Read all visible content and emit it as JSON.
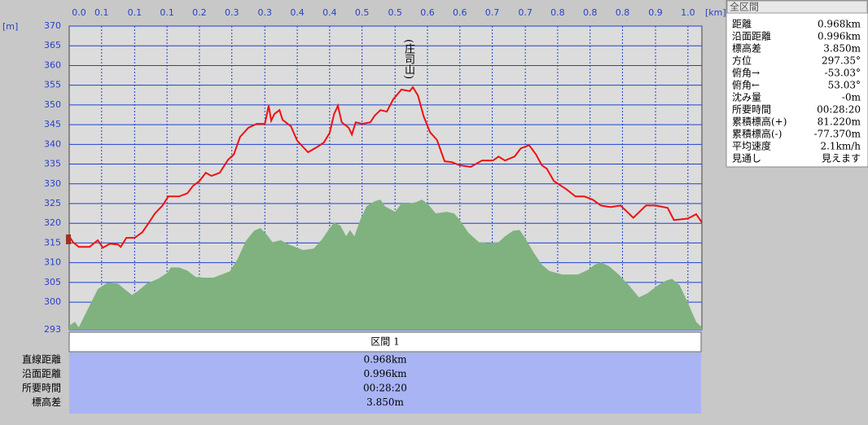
{
  "chart_data": {
    "type": "profile",
    "annotation": "(庄司山)",
    "y_unit": "[m]",
    "x_unit": "[km]",
    "xlim": [
      0,
      0.996
    ],
    "ylim": [
      293,
      370
    ],
    "xticks": [
      {
        "value": 0,
        "label": "0.0"
      },
      {
        "value": 0.051,
        "label": "0.1"
      },
      {
        "value": 0.103,
        "label": "0.1"
      },
      {
        "value": 0.154,
        "label": "0.1"
      },
      {
        "value": 0.205,
        "label": "0.2"
      },
      {
        "value": 0.256,
        "label": "0.3"
      },
      {
        "value": 0.308,
        "label": "0.3"
      },
      {
        "value": 0.359,
        "label": "0.4"
      },
      {
        "value": 0.41,
        "label": "0.4"
      },
      {
        "value": 0.461,
        "label": "0.5"
      },
      {
        "value": 0.513,
        "label": "0.5"
      },
      {
        "value": 0.564,
        "label": "0.6"
      },
      {
        "value": 0.615,
        "label": "0.6"
      },
      {
        "value": 0.666,
        "label": "0.7"
      },
      {
        "value": 0.718,
        "label": "0.7"
      },
      {
        "value": 0.769,
        "label": "0.8"
      },
      {
        "value": 0.82,
        "label": "0.8"
      },
      {
        "value": 0.871,
        "label": "0.8"
      },
      {
        "value": 0.923,
        "label": "0.9"
      },
      {
        "value": 0.974,
        "label": "1.0"
      }
    ],
    "yticks": [
      293,
      300,
      305,
      310,
      315,
      320,
      325,
      330,
      335,
      340,
      345,
      350,
      355,
      360,
      365,
      370
    ],
    "grid": true,
    "series": [
      {
        "kind": "area",
        "color": "#7fb27f",
        "x": [
          0,
          0.009,
          0.015,
          0.032,
          0.045,
          0.06,
          0.077,
          0.087,
          0.099,
          0.109,
          0.122,
          0.141,
          0.154,
          0.16,
          0.173,
          0.186,
          0.199,
          0.212,
          0.227,
          0.24,
          0.253,
          0.265,
          0.278,
          0.291,
          0.301,
          0.311,
          0.32,
          0.333,
          0.346,
          0.368,
          0.385,
          0.397,
          0.408,
          0.417,
          0.427,
          0.436,
          0.442,
          0.449,
          0.458,
          0.468,
          0.481,
          0.49,
          0.497,
          0.513,
          0.523,
          0.536,
          0.547,
          0.555,
          0.564,
          0.577,
          0.594,
          0.606,
          0.615,
          0.628,
          0.645,
          0.66,
          0.676,
          0.686,
          0.699,
          0.709,
          0.718,
          0.731,
          0.744,
          0.756,
          0.776,
          0.801,
          0.817,
          0.827,
          0.837,
          0.85,
          0.865,
          0.881,
          0.897,
          0.91,
          0.927,
          0.94,
          0.949,
          0.961,
          0.974,
          0.987,
          0.996
        ],
        "values": [
          294.0,
          295.0,
          293.6,
          299.1,
          303.3,
          304.9,
          304.7,
          303.3,
          301.8,
          302.9,
          304.7,
          306.0,
          307.4,
          308.8,
          308.8,
          308.0,
          306.4,
          306.2,
          306.2,
          307.0,
          307.8,
          310.9,
          315.5,
          318.1,
          318.8,
          317.1,
          315.2,
          315.7,
          314.6,
          313.2,
          313.6,
          315.7,
          318.3,
          320.2,
          319.4,
          316.7,
          318.3,
          316.7,
          320.8,
          324.3,
          325.6,
          326.0,
          324.3,
          322.9,
          325.0,
          325.0,
          325.4,
          326.0,
          325.0,
          322.5,
          322.9,
          322.5,
          320.8,
          317.7,
          315.2,
          315.0,
          315.2,
          316.7,
          318.1,
          318.3,
          316.2,
          312.6,
          309.5,
          307.9,
          307.0,
          307.0,
          308.2,
          309.5,
          310.1,
          309.1,
          307.0,
          304.3,
          301.2,
          302.2,
          304.3,
          305.5,
          305.9,
          304.3,
          299.8,
          295.0,
          293.6
        ]
      },
      {
        "kind": "line",
        "color": "#ee1111",
        "x": [
          0,
          0.006,
          0.015,
          0.032,
          0.045,
          0.053,
          0.064,
          0.077,
          0.081,
          0.09,
          0.103,
          0.115,
          0.124,
          0.135,
          0.147,
          0.156,
          0.173,
          0.186,
          0.195,
          0.205,
          0.215,
          0.224,
          0.237,
          0.25,
          0.259,
          0.269,
          0.282,
          0.295,
          0.308,
          0.314,
          0.318,
          0.323,
          0.331,
          0.336,
          0.349,
          0.359,
          0.376,
          0.391,
          0.401,
          0.41,
          0.417,
          0.423,
          0.429,
          0.44,
          0.445,
          0.451,
          0.461,
          0.474,
          0.481,
          0.49,
          0.5,
          0.51,
          0.523,
          0.536,
          0.541,
          0.549,
          0.558,
          0.568,
          0.579,
          0.591,
          0.602,
          0.615,
          0.632,
          0.65,
          0.667,
          0.676,
          0.686,
          0.701,
          0.711,
          0.724,
          0.735,
          0.744,
          0.752,
          0.763,
          0.782,
          0.797,
          0.811,
          0.824,
          0.837,
          0.852,
          0.868,
          0.888,
          0.908,
          0.923,
          0.942,
          0.952,
          0.974,
          0.987,
          0.996
        ],
        "values": [
          316.7,
          315.2,
          314.0,
          314.0,
          315.7,
          313.8,
          314.8,
          314.6,
          314.0,
          316.3,
          316.3,
          317.7,
          319.8,
          322.5,
          324.5,
          326.8,
          326.8,
          327.6,
          329.5,
          330.7,
          332.8,
          332.0,
          332.8,
          336.1,
          337.4,
          341.9,
          344.2,
          345.2,
          345.2,
          349.8,
          346.0,
          347.7,
          348.7,
          346.2,
          344.6,
          340.9,
          338.0,
          339.4,
          340.5,
          342.9,
          347.7,
          349.8,
          345.6,
          344.2,
          342.5,
          345.6,
          345.2,
          345.6,
          347.3,
          348.7,
          348.3,
          351.4,
          353.9,
          353.5,
          354.5,
          352.4,
          347.1,
          343.1,
          341.1,
          335.7,
          335.5,
          334.7,
          334.3,
          335.9,
          335.9,
          336.9,
          335.9,
          336.9,
          339.0,
          339.8,
          337.4,
          334.7,
          333.8,
          330.7,
          328.7,
          326.8,
          326.8,
          326.0,
          324.5,
          324.1,
          324.5,
          321.4,
          324.5,
          324.5,
          323.9,
          320.8,
          321.2,
          322.3,
          320.2
        ]
      }
    ]
  },
  "summary": {
    "title": "全区間",
    "rows": [
      [
        "距離",
        "0.968km"
      ],
      [
        "沿面距離",
        "0.996km"
      ],
      [
        "標高差",
        "3.850m"
      ],
      [
        "方位",
        "297.35°"
      ],
      [
        "俯角→",
        "-53.03°"
      ],
      [
        "俯角←",
        "53.03°"
      ],
      [
        "沈み量",
        "-0m"
      ],
      [
        "所要時間",
        "00:28:20"
      ],
      [
        "累積標高(+)",
        "81.220m"
      ],
      [
        "累積標高(-)",
        "-77.370m"
      ],
      [
        "平均速度",
        "2.1km/h"
      ],
      [
        "見通し",
        "見えます"
      ]
    ]
  },
  "section": {
    "title": "区間 1",
    "rows": [
      [
        "直線距離",
        "0.968km"
      ],
      [
        "沿面距離",
        "0.996km"
      ],
      [
        "所要時間",
        "00:28:20"
      ],
      [
        "標高差",
        "3.850m"
      ]
    ]
  }
}
